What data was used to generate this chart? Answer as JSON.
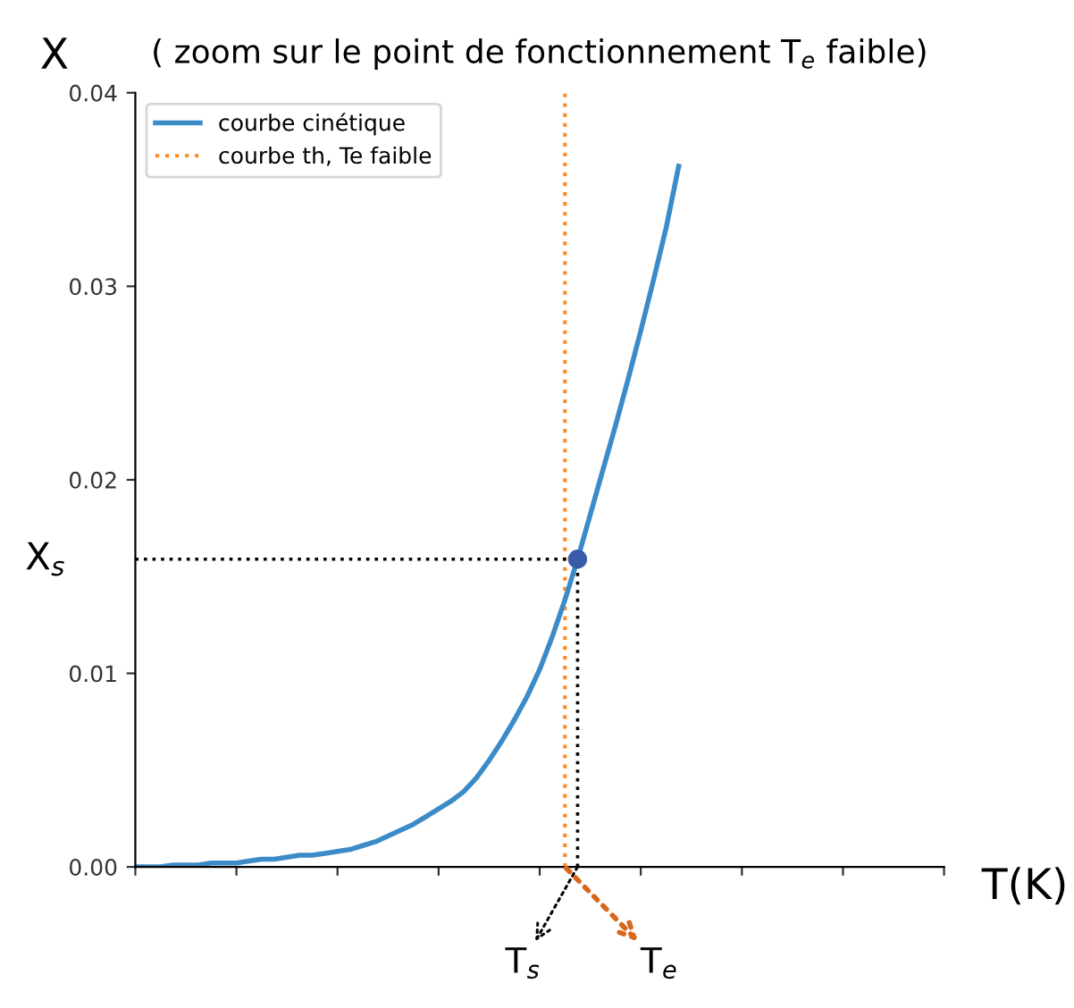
{
  "chart_data": {
    "type": "line",
    "title": "( zoom sur le point de fonctionnement T$_{e}$ faible)",
    "xlabel": "T(K)",
    "ylabel": "X",
    "categories": [
      null,
      null,
      null,
      null,
      null,
      null,
      null,
      null,
      null,
      null,
      null,
      null,
      null,
      null,
      null,
      null,
      null,
      null,
      null,
      null,
      null,
      null,
      null,
      null,
      null,
      null,
      null,
      null,
      null,
      null,
      null,
      null,
      null,
      null,
      null,
      null,
      null,
      null,
      null,
      null,
      null,
      null,
      null,
      null,
      null,
      null,
      null,
      null,
      null,
      null,
      null,
      null,
      null,
      null,
      null,
      null,
      null,
      null,
      null,
      null,
      null,
      null,
      null,
      null,
      null
    ],
    "series": [
      {
        "name": "courbe cinétique",
        "color": "#3b8bc8",
        "values": [
          0,
          0,
          0,
          0.0001,
          0.0001,
          0.0001,
          0.0002,
          0.0002,
          0.0002,
          0.0003,
          0.0004,
          0.0004,
          0.0005,
          0.0006,
          0.0006,
          0.0007,
          0.0008,
          0.0009,
          0.0011,
          0.0013,
          0.0016,
          0.0019,
          0.0022,
          0.0026,
          0.003,
          0.0034,
          0.0039,
          0.0046,
          0.0055,
          0.0065,
          0.0076,
          0.0088,
          0.0102,
          0.0119,
          0.0138,
          0.0159,
          0.0182,
          0.0205,
          0.0228,
          0.0252,
          0.0277,
          0.0303,
          0.033,
          0.0362,
          null,
          null,
          null,
          null,
          null,
          null,
          null,
          null,
          null,
          null,
          null,
          null,
          null,
          null,
          null,
          null,
          null,
          null,
          null,
          null,
          null
        ]
      },
      {
        "name": "courbe th, Te faible",
        "color": "#ff8c28",
        "line_style": "dotted",
        "values": [
          null,
          null,
          null,
          null,
          null,
          null,
          null,
          null,
          null,
          null,
          null,
          null,
          null,
          null,
          null,
          null,
          null,
          null,
          null,
          null,
          null,
          null,
          null,
          null,
          null,
          null,
          null,
          null,
          null,
          null,
          null,
          null,
          null,
          null,
          null,
          null,
          null,
          null,
          null,
          null,
          null,
          null,
          null,
          null,
          null,
          null,
          null,
          null,
          null,
          null,
          null,
          null,
          null,
          null,
          null,
          null,
          null,
          null,
          null,
          null,
          null,
          null,
          null,
          null,
          null
        ]
      },
      {
        "color": "#000000",
        "line_style": "dotted",
        "values": [
          0.0159,
          0.0159,
          0.0159,
          0.0159,
          0.0159,
          0.0159,
          0.0159,
          0.0159,
          0.0159,
          0.0159,
          0.0159,
          0.0159,
          0.0159,
          0.0159,
          0.0159,
          0.0159,
          0.0159,
          0.0159,
          0.0159,
          0.0159,
          0.0159,
          0.0159,
          0.0159,
          0.0159,
          0.0159,
          0.0159,
          0.0159,
          0.0159,
          0.0159,
          0.0159,
          0.0159,
          0.0159,
          0.0159,
          0.0159,
          0.0159,
          0.0159,
          null,
          null,
          null,
          null,
          null,
          null,
          null,
          null,
          null,
          null,
          null,
          null,
          null,
          null,
          null,
          null,
          null,
          null,
          null,
          null,
          null,
          null,
          null,
          null,
          null,
          null,
          null,
          null,
          null
        ]
      },
      {
        "type": "scatter",
        "color": "#3a5ca8",
        "marker": "circle",
        "values": [
          null,
          null,
          null,
          null,
          null,
          null,
          null,
          null,
          null,
          null,
          null,
          null,
          null,
          null,
          null,
          null,
          null,
          null,
          null,
          null,
          null,
          null,
          null,
          null,
          null,
          null,
          null,
          null,
          null,
          null,
          null,
          null,
          null,
          null,
          null,
          0.0159,
          null,
          null,
          null,
          null,
          null,
          null,
          null,
          null,
          null,
          null,
          null,
          null,
          null,
          null,
          null,
          null,
          null,
          null,
          null,
          null,
          null,
          null,
          null,
          null,
          null,
          null,
          null,
          null,
          null
        ]
      }
    ],
    "annotations": [
      "X$_{s}$",
      "T$_{s}$",
      "T$_{e}$"
    ],
    "ylim": [
      0,
      0.04
    ],
    "yticks": [
      {
        "value": 0,
        "label": "0.00"
      },
      {
        "value": 0.01,
        "label": "0.01"
      },
      {
        "value": 0.02,
        "label": "0.02"
      },
      {
        "value": 0.03,
        "label": "0.03"
      },
      {
        "value": 0.04,
        "label": "0.04"
      }
    ],
    "grid": false,
    "legend": "top left"
  }
}
